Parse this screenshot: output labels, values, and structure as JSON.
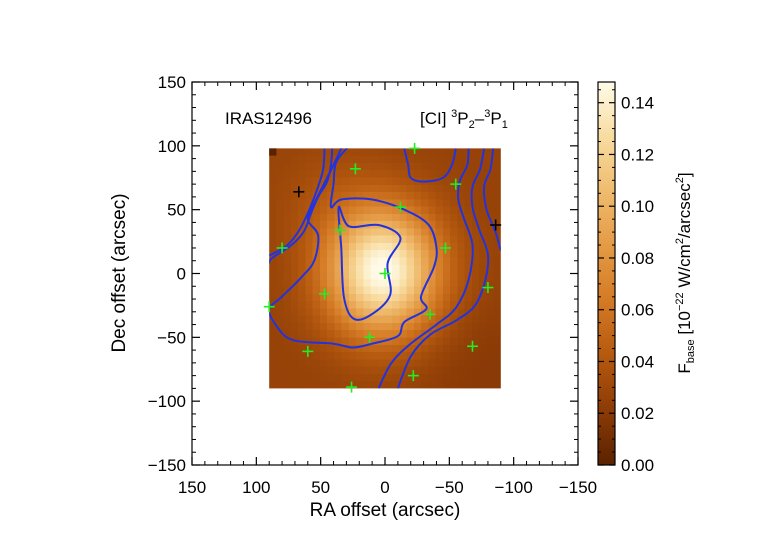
{
  "chart_data": {
    "type": "heatmap",
    "object_label": "IRAS12496",
    "line_label": {
      "species": "[CI] ",
      "upper_sup": "3",
      "upper_term": "P",
      "upper_sub": "2",
      "sep": "–",
      "lower_sup": "3",
      "lower_term": "P",
      "lower_sub": "1"
    },
    "xlabel": "RA offset (arcsec)",
    "ylabel": "Dec offset (arcsec)",
    "xlim": [
      150,
      -150
    ],
    "ylim": [
      -150,
      150
    ],
    "x_ticks": [
      "150",
      "100",
      "50",
      "0",
      "−50",
      "−100",
      "−150"
    ],
    "y_ticks": [
      "−150",
      "−100",
      "−50",
      "0",
      "50",
      "100",
      "150"
    ],
    "x_tick_values": [
      150,
      100,
      50,
      0,
      -50,
      -100,
      -150
    ],
    "y_tick_values": [
      -150,
      -100,
      -50,
      0,
      50,
      100,
      150
    ],
    "map_extent": {
      "ra": [
        90,
        -90
      ],
      "dec": [
        -90,
        98
      ]
    },
    "peak": {
      "ra": 2,
      "dec": 2,
      "value": 0.15
    },
    "colorbar": {
      "label_main": "F",
      "label_sub": "base",
      "label_rest_1": " [10",
      "label_exp": "−22",
      "label_rest_2": " W/cm",
      "label_sq1": "2",
      "label_rest_3": "/arcsec",
      "label_sq2": "2",
      "label_close": "]",
      "ticks": [
        "0.00",
        "0.02",
        "0.04",
        "0.06",
        "0.08",
        "0.10",
        "0.12",
        "0.14"
      ],
      "tick_values": [
        0.0,
        0.02,
        0.04,
        0.06,
        0.08,
        0.1,
        0.12,
        0.14
      ],
      "range": [
        0.0,
        0.148
      ],
      "colormap": [
        "#5a2200",
        "#8c3b06",
        "#b5590f",
        "#d47a25",
        "#e49a45",
        "#efbb6e",
        "#f8dca0",
        "#fffbe8"
      ]
    },
    "contour_color": "#2233dd",
    "marker_colors": {
      "in_map": "#22ee22",
      "out_of_map": "#000000"
    },
    "pointings_in_map": [
      [
        0,
        0
      ],
      [
        -12,
        52
      ],
      [
        -23,
        98
      ],
      [
        -55,
        70
      ],
      [
        -47,
        20
      ],
      [
        -80,
        -11
      ],
      [
        -35,
        -32
      ],
      [
        -68,
        -57
      ],
      [
        -22,
        -80
      ],
      [
        12,
        -50
      ],
      [
        26,
        -89
      ],
      [
        60,
        -61
      ],
      [
        90,
        -26
      ],
      [
        47,
        -16
      ],
      [
        35,
        34
      ],
      [
        80,
        20
      ],
      [
        23,
        82
      ]
    ],
    "pointings_outside": [
      [
        67,
        64
      ],
      [
        -86,
        38
      ]
    ],
    "contours": [
      [
        [
          36,
          52
        ],
        [
          34,
          20
        ],
        [
          32,
          -18
        ],
        [
          25,
          -35
        ],
        [
          12,
          -33
        ],
        [
          -4,
          -17
        ],
        [
          -2,
          8
        ],
        [
          -12,
          28
        ],
        [
          5,
          38
        ],
        [
          28,
          37
        ]
      ],
      [
        [
          28,
          100
        ],
        [
          38,
          87
        ],
        [
          40,
          70
        ],
        [
          42,
          52
        ],
        [
          34,
          58
        ],
        [
          10,
          58
        ],
        [
          -15,
          50
        ],
        [
          -34,
          38
        ],
        [
          -40,
          20
        ],
        [
          -38,
          5
        ],
        [
          -28,
          -18
        ],
        [
          -32,
          -28
        ],
        [
          -15,
          -38
        ],
        [
          -10,
          -49
        ],
        [
          10,
          -55
        ],
        [
          25,
          -58
        ],
        [
          40,
          -55
        ],
        [
          72,
          -52
        ],
        [
          85,
          -40
        ],
        [
          90,
          -28
        ],
        [
          80,
          -18
        ],
        [
          65,
          -3
        ],
        [
          55,
          10
        ],
        [
          52,
          30
        ],
        [
          60,
          42
        ],
        [
          55,
          55
        ],
        [
          45,
          75
        ],
        [
          40,
          85
        ],
        [
          33,
          100
        ]
      ],
      [
        [
          41,
          98
        ],
        [
          42,
          85
        ],
        [
          45,
          72
        ],
        [
          52,
          60
        ],
        [
          58,
          46
        ],
        [
          63,
          33
        ],
        [
          73,
          22
        ],
        [
          88,
          12
        ],
        [
          90,
          8
        ]
      ],
      [
        [
          47,
          98
        ],
        [
          48,
          82
        ],
        [
          52,
          68
        ],
        [
          58,
          52
        ],
        [
          66,
          35
        ],
        [
          76,
          22
        ],
        [
          90,
          14
        ]
      ],
      [
        [
          -65,
          98
        ],
        [
          -64,
          85
        ],
        [
          -58,
          72
        ],
        [
          -57,
          58
        ],
        [
          -61,
          44
        ],
        [
          -68,
          22
        ],
        [
          -65,
          -5
        ],
        [
          -55,
          -27
        ],
        [
          -40,
          -40
        ],
        [
          -20,
          -55
        ],
        [
          -5,
          -70
        ],
        [
          5,
          -90
        ]
      ],
      [
        [
          -77,
          98
        ],
        [
          -74,
          82
        ],
        [
          -68,
          68
        ],
        [
          -68,
          52
        ],
        [
          -73,
          35
        ],
        [
          -80,
          15
        ],
        [
          -78,
          -5
        ],
        [
          -70,
          -25
        ],
        [
          -55,
          -37
        ],
        [
          -35,
          -48
        ],
        [
          -20,
          -65
        ],
        [
          -10,
          -90
        ]
      ],
      [
        [
          -84,
          98
        ],
        [
          -82,
          82
        ],
        [
          -77,
          68
        ],
        [
          -79,
          50
        ],
        [
          -86,
          32
        ],
        [
          -90,
          18
        ]
      ],
      [
        [
          -55,
          98
        ],
        [
          -52,
          85
        ],
        [
          -45,
          75
        ],
        [
          -30,
          72
        ],
        [
          -20,
          75
        ],
        [
          -18,
          85
        ],
        [
          -15,
          98
        ]
      ]
    ]
  }
}
